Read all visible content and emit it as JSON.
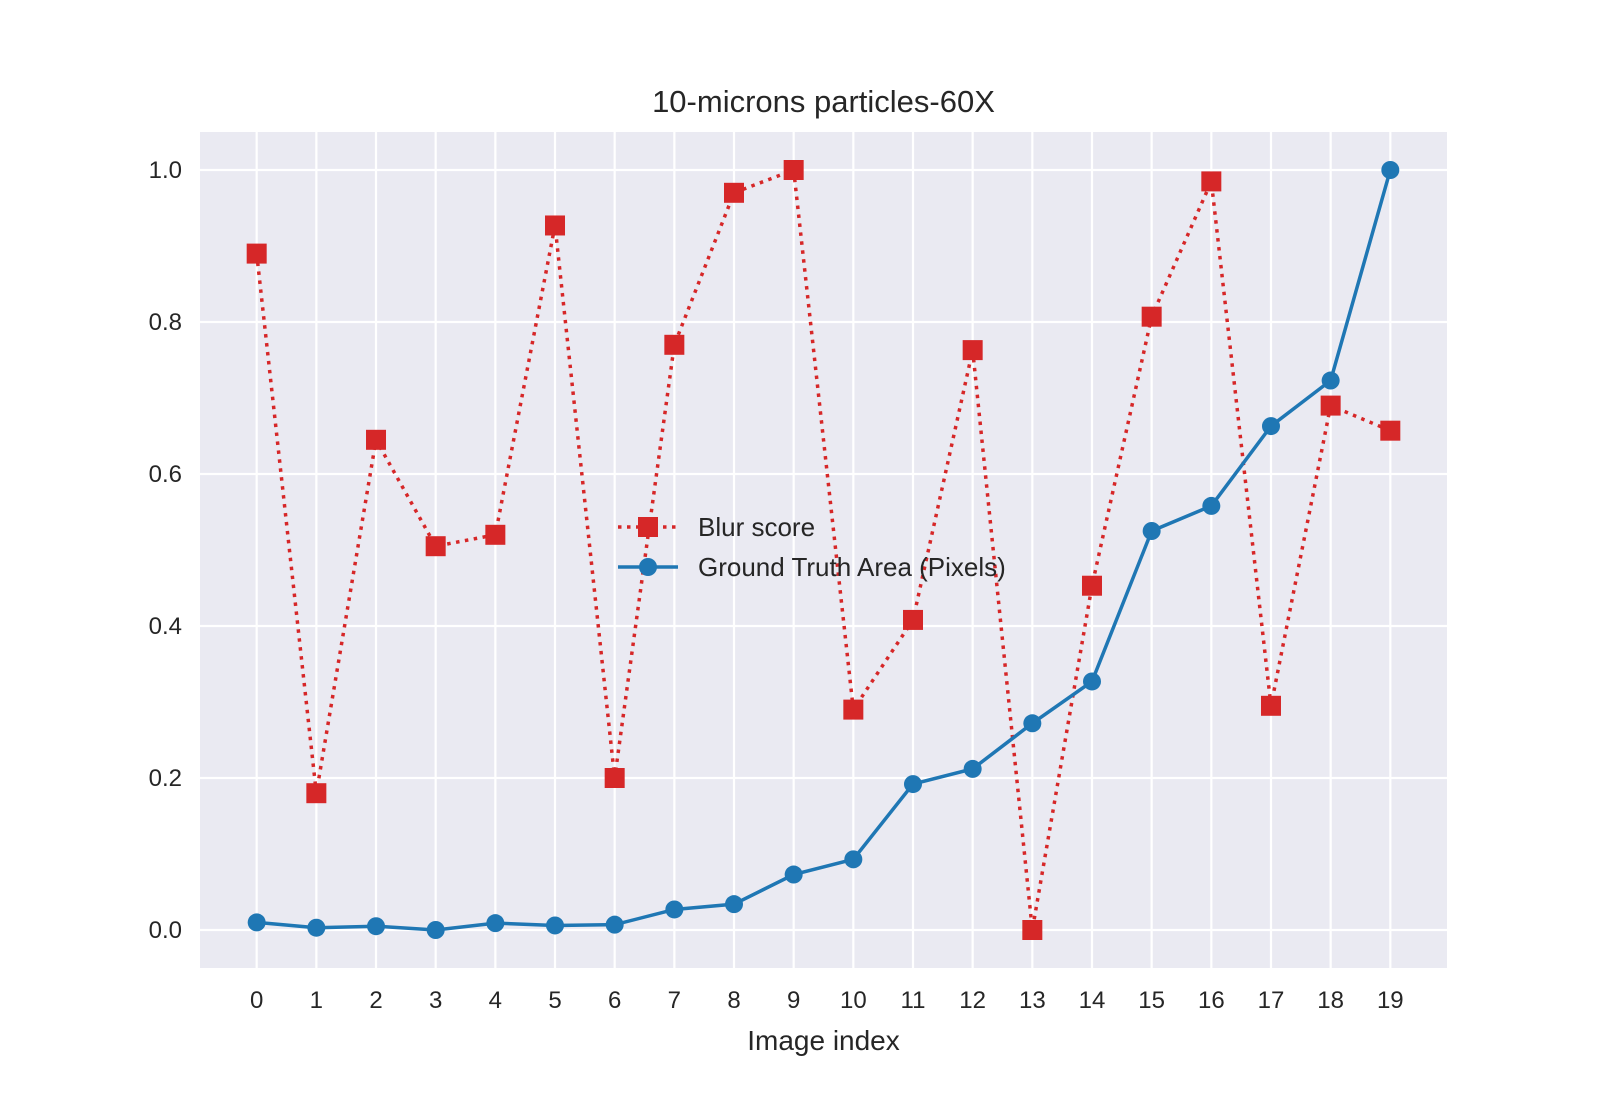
{
  "chart_data": {
    "type": "line",
    "title": "10-microns particles-60X",
    "xlabel": "Image index",
    "ylabel": "",
    "x": [
      0,
      1,
      2,
      3,
      4,
      5,
      6,
      7,
      8,
      9,
      10,
      11,
      12,
      13,
      14,
      15,
      16,
      17,
      18,
      19
    ],
    "xticks": [
      "0",
      "1",
      "2",
      "3",
      "4",
      "5",
      "6",
      "7",
      "8",
      "9",
      "10",
      "11",
      "12",
      "13",
      "14",
      "15",
      "16",
      "17",
      "18",
      "19"
    ],
    "yticks": [
      "0.0",
      "0.2",
      "0.4",
      "0.6",
      "0.8",
      "1.0"
    ],
    "ylim": [
      -0.05,
      1.05
    ],
    "xlim": [
      -0.95,
      19.95
    ],
    "grid": true,
    "legend_position": "center",
    "series": [
      {
        "name": "Blur score",
        "color": "#d62728",
        "linestyle": "dotted",
        "marker": "square",
        "values": [
          0.89,
          0.18,
          0.645,
          0.505,
          0.52,
          0.927,
          0.2,
          0.77,
          0.97,
          1.0,
          0.29,
          0.408,
          0.763,
          0.0,
          0.453,
          0.807,
          0.985,
          0.295,
          0.69,
          0.657
        ]
      },
      {
        "name": "Ground Truth Area (Pixels)",
        "color": "#1f77b4",
        "linestyle": "solid",
        "marker": "circle",
        "values": [
          0.01,
          0.003,
          0.005,
          0.0,
          0.009,
          0.006,
          0.007,
          0.027,
          0.034,
          0.073,
          0.093,
          0.192,
          0.212,
          0.272,
          0.327,
          0.525,
          0.558,
          0.663,
          0.723,
          1.0
        ]
      }
    ]
  }
}
